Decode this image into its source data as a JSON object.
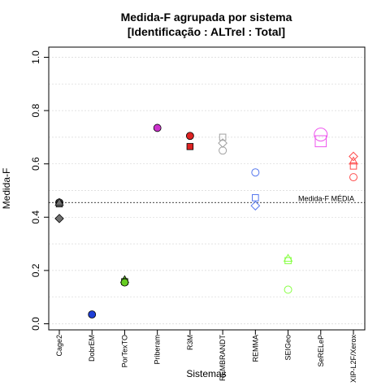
{
  "chart_data": {
    "type": "scatter",
    "title_line1": "Medida-F agrupada por sistema",
    "title_line2": "[Identificação : ALTrel : Total]",
    "xlabel": "Sistemas",
    "ylabel": "Medida-F",
    "ylim": [
      0,
      1
    ],
    "yticks": [
      "0.0",
      "0.2",
      "0.4",
      "0.6",
      "0.8",
      "1.0"
    ],
    "ytick_values": [
      0,
      0.2,
      0.4,
      0.6,
      0.8,
      1.0
    ],
    "grid": true,
    "categories": [
      "Cage2",
      "DobrEM",
      "PorTexTO",
      "Priberam",
      "R3M",
      "REMBRANDT",
      "REMMA",
      "SEIGeo",
      "SeRELeP",
      "XIP-L2F/Xerox"
    ],
    "reference_line": {
      "value": 0.455,
      "label": "Medida-F MÉDIA"
    },
    "colors": {
      "Cage2": "#707070",
      "DobrEM": "#1f3fd6",
      "PorTexTO": "#66cc22",
      "Priberam": "#cc33cc",
      "R3M": "#dd2222",
      "REMBRANDT": "#a0a0a0",
      "REMMA": "#5577ee",
      "SEIGeo": "#88ff44",
      "SeRELeP": "#ee55ee",
      "XIP-L2F/Xerox": "#ff4c4c"
    },
    "points": [
      {
        "category": "Cage2",
        "value": 0.455,
        "marker": "circle",
        "filled": true
      },
      {
        "category": "Cage2",
        "value": 0.45,
        "marker": "square",
        "filled": true
      },
      {
        "category": "Cage2",
        "value": 0.455,
        "marker": "triangle",
        "filled": true
      },
      {
        "category": "Cage2",
        "value": 0.395,
        "marker": "diamond",
        "filled": true
      },
      {
        "category": "DobrEM",
        "value": 0.035,
        "marker": "circle",
        "filled": true
      },
      {
        "category": "PorTexTO",
        "value": 0.165,
        "marker": "triangle",
        "filled": true
      },
      {
        "category": "PorTexTO",
        "value": 0.158,
        "marker": "square",
        "filled": true
      },
      {
        "category": "PorTexTO",
        "value": 0.155,
        "marker": "circle",
        "filled": true
      },
      {
        "category": "Priberam",
        "value": 0.735,
        "marker": "circle",
        "filled": true
      },
      {
        "category": "R3M",
        "value": 0.705,
        "marker": "circle",
        "filled": true
      },
      {
        "category": "R3M",
        "value": 0.665,
        "marker": "square",
        "filled": true
      },
      {
        "category": "REMBRANDT",
        "value": 0.7,
        "marker": "square",
        "filled": false
      },
      {
        "category": "REMBRANDT",
        "value": 0.678,
        "marker": "diamond",
        "filled": false
      },
      {
        "category": "REMBRANDT",
        "value": 0.65,
        "marker": "circle",
        "filled": false
      },
      {
        "category": "REMMA",
        "value": 0.568,
        "marker": "circle",
        "filled": false
      },
      {
        "category": "REMMA",
        "value": 0.473,
        "marker": "square",
        "filled": false
      },
      {
        "category": "REMMA",
        "value": 0.443,
        "marker": "diamond",
        "filled": false
      },
      {
        "category": "SEIGeo",
        "value": 0.245,
        "marker": "triangle",
        "filled": false
      },
      {
        "category": "SEIGeo",
        "value": 0.237,
        "marker": "square",
        "filled": false
      },
      {
        "category": "SEIGeo",
        "value": 0.128,
        "marker": "circle",
        "filled": false
      },
      {
        "category": "SeRELeP",
        "value": 0.71,
        "marker": "circle",
        "filled": false,
        "size": "large"
      },
      {
        "category": "SeRELeP",
        "value": 0.685,
        "marker": "square",
        "filled": false,
        "size": "large"
      },
      {
        "category": "XIP-L2F/Xerox",
        "value": 0.628,
        "marker": "diamond",
        "filled": false
      },
      {
        "category": "XIP-L2F/Xerox",
        "value": 0.61,
        "marker": "triangle",
        "filled": false
      },
      {
        "category": "XIP-L2F/Xerox",
        "value": 0.592,
        "marker": "square",
        "filled": false
      },
      {
        "category": "XIP-L2F/Xerox",
        "value": 0.55,
        "marker": "circle",
        "filled": false
      }
    ]
  }
}
